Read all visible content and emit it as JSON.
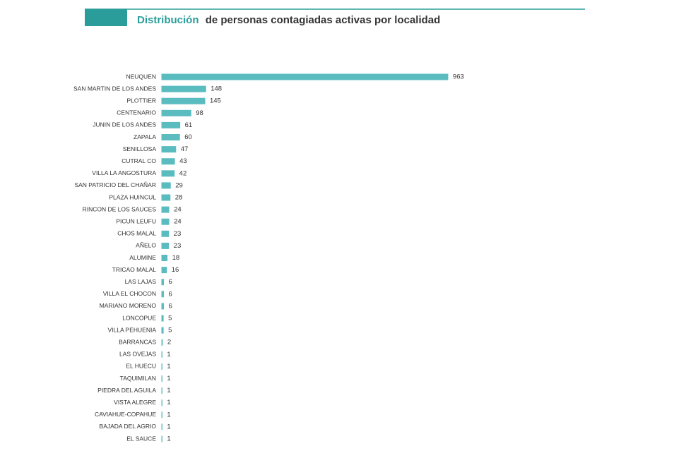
{
  "chart_data": {
    "type": "hbar",
    "title_highlight": "Distribución",
    "title": "de personas contagiadas activas por localidad",
    "color": "#5bbcc0",
    "categories": [
      "NEUQUEN",
      "SAN MARTIN DE LOS ANDES",
      "PLOTTIER",
      "CENTENARIO",
      "JUNIN DE LOS ANDES",
      "ZAPALA",
      "SENILLOSA",
      "CUTRAL CO",
      "VILLA LA ANGOSTURA",
      "SAN PATRICIO DEL CHAÑAR",
      "PLAZA HUINCUL",
      "RINCON DE LOS SAUCES",
      "PICUN LEUFU",
      "CHOS MALAL",
      "AÑELO",
      "ALUMINE",
      "TRICAO MALAL",
      "LAS LAJAS",
      "VILLA EL CHOCON",
      "MARIANO MORENO",
      "LONCOPUE",
      "VILLA PEHUENIA",
      "BARRANCAS",
      "LAS OVEJAS",
      "EL HUECU",
      "TAQUIMILAN",
      "PIEDRA DEL AGUILA",
      "VISTA ALEGRE",
      "CAVIAHUE-COPAHUE",
      "BAJADA DEL AGRIO",
      "EL SAUCE"
    ],
    "values": [
      963,
      148,
      145,
      98,
      61,
      60,
      47,
      43,
      42,
      29,
      28,
      24,
      24,
      23,
      23,
      18,
      16,
      6,
      6,
      6,
      5,
      5,
      2,
      1,
      1,
      1,
      1,
      1,
      1,
      1,
      1
    ]
  }
}
